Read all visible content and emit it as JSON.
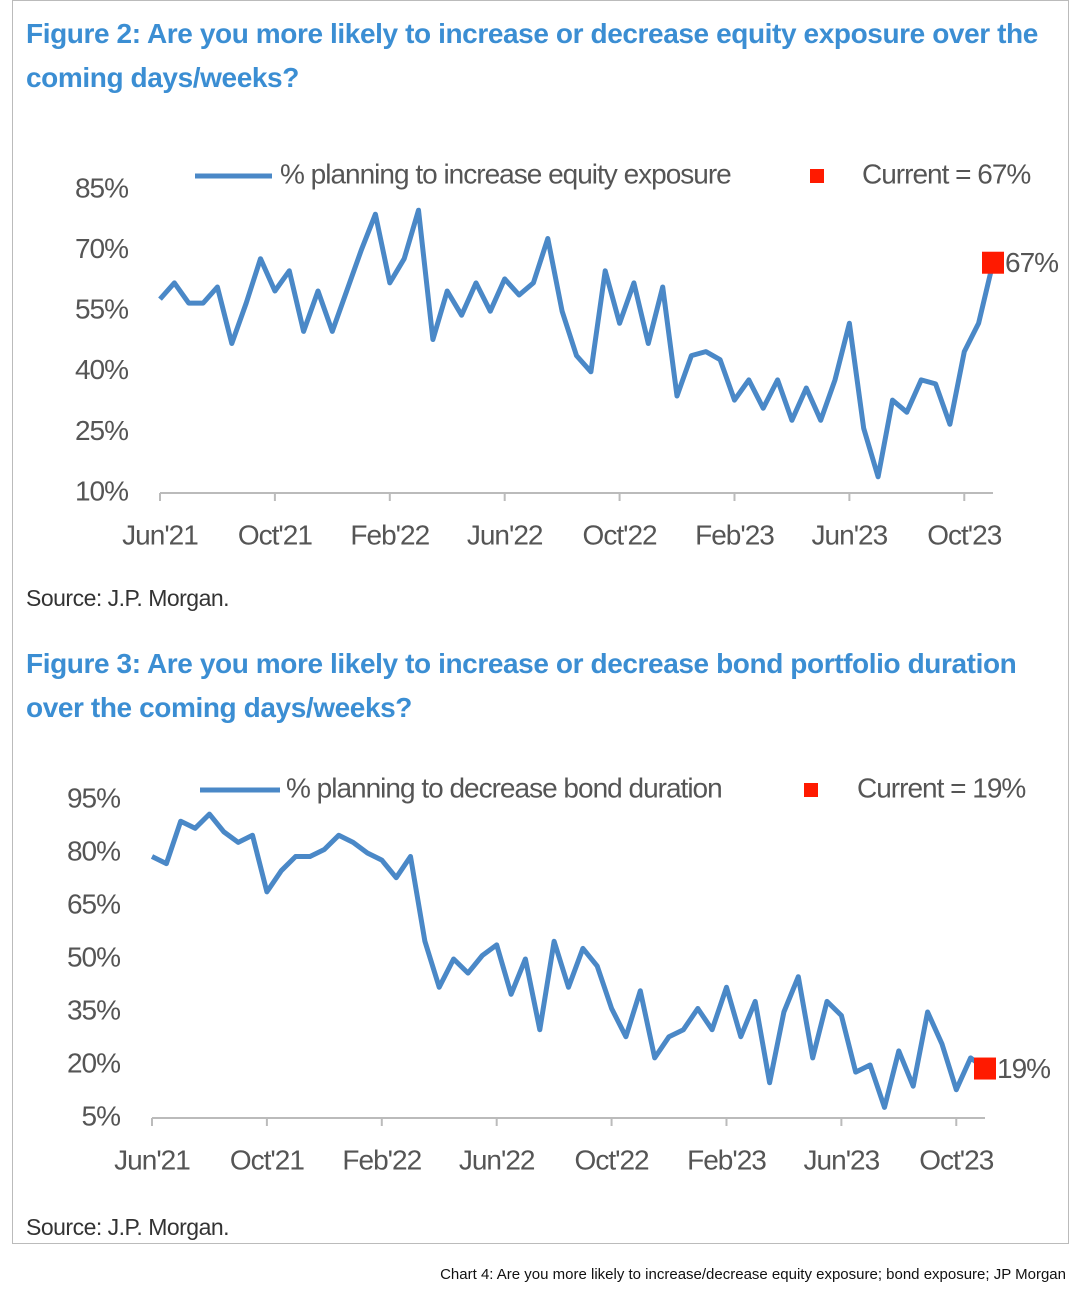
{
  "chart_data": [
    {
      "type": "line",
      "title": "Figure 2: Are you more likely to increase or decrease equity exposure over the coming days/weeks?",
      "categories": [
        "Jun'21",
        null,
        null,
        null,
        null,
        null,
        null,
        null,
        "Oct'21",
        null,
        null,
        null,
        null,
        null,
        null,
        null,
        "Feb'22",
        null,
        null,
        null,
        null,
        null,
        null,
        null,
        "Jun'22",
        null,
        null,
        null,
        null,
        null,
        null,
        null,
        "Oct'22",
        null,
        null,
        null,
        null,
        null,
        null,
        null,
        "Feb'23",
        null,
        null,
        null,
        null,
        null,
        null,
        null,
        "Jun'23",
        null,
        null,
        null,
        null,
        null,
        null,
        null,
        "Oct'23",
        null,
        null
      ],
      "series": [
        {
          "name": "% planning to increase equity exposure",
          "color": "#4a88c7",
          "values": [
            58,
            62,
            57,
            57,
            61,
            47,
            57,
            68,
            60,
            65,
            50,
            60,
            50,
            60,
            70,
            79,
            62,
            68,
            80,
            48,
            60,
            54,
            62,
            55,
            63,
            59,
            62,
            73,
            55,
            44,
            40,
            65,
            52,
            62,
            47,
            61,
            34,
            44,
            45,
            43,
            33,
            38,
            31,
            38,
            28,
            36,
            28,
            38,
            52,
            26,
            14,
            33,
            30,
            38,
            37,
            27,
            45,
            52,
            67
          ]
        }
      ],
      "current": {
        "name": "Current = 67%",
        "value": 67,
        "value_label": "67%",
        "color": "#ff1a00"
      },
      "ylim": [
        10,
        85
      ],
      "yticks": [
        {
          "value": 10,
          "label": "10%"
        },
        {
          "value": 25,
          "label": "25%"
        },
        {
          "value": 40,
          "label": "40%"
        },
        {
          "value": 55,
          "label": "55%"
        },
        {
          "value": 70,
          "label": "70%"
        },
        {
          "value": 85,
          "label": "85%"
        }
      ],
      "source": "Source: J.P. Morgan."
    },
    {
      "type": "line",
      "title": "Figure 3: Are you more likely to increase or decrease bond portfolio duration over the coming days/weeks?",
      "categories": [
        "Jun'21",
        null,
        null,
        null,
        null,
        null,
        null,
        null,
        "Oct'21",
        null,
        null,
        null,
        null,
        null,
        null,
        null,
        "Feb'22",
        null,
        null,
        null,
        null,
        null,
        null,
        null,
        "Jun'22",
        null,
        null,
        null,
        null,
        null,
        null,
        null,
        "Oct'22",
        null,
        null,
        null,
        null,
        null,
        null,
        null,
        "Feb'23",
        null,
        null,
        null,
        null,
        null,
        null,
        null,
        "Jun'23",
        null,
        null,
        null,
        null,
        null,
        null,
        null,
        "Oct'23",
        null,
        null
      ],
      "series": [
        {
          "name": "% planning to decrease bond duration",
          "color": "#4a88c7",
          "values": [
            79,
            77,
            89,
            87,
            91,
            86,
            83,
            85,
            69,
            75,
            79,
            79,
            81,
            85,
            83,
            80,
            78,
            73,
            79,
            55,
            42,
            50,
            46,
            51,
            54,
            40,
            50,
            30,
            55,
            42,
            53,
            48,
            36,
            28,
            41,
            22,
            28,
            30,
            36,
            30,
            42,
            28,
            38,
            15,
            35,
            45,
            22,
            38,
            34,
            18,
            20,
            8,
            24,
            14,
            35,
            26,
            13,
            22,
            19
          ]
        }
      ],
      "current": {
        "name": "Current = 19%",
        "value": 19,
        "value_label": "19%",
        "color": "#ff1a00"
      },
      "ylim": [
        5,
        95
      ],
      "yticks": [
        {
          "value": 5,
          "label": "5%"
        },
        {
          "value": 20,
          "label": "20%"
        },
        {
          "value": 35,
          "label": "35%"
        },
        {
          "value": 50,
          "label": "50%"
        },
        {
          "value": 65,
          "label": "65%"
        },
        {
          "value": 80,
          "label": "80%"
        },
        {
          "value": 95,
          "label": "95%"
        }
      ],
      "source": "Source: J.P. Morgan."
    }
  ],
  "caption": "Chart 4: Are you more likely to increase/decrease equity exposure; bond exposure; JP Morgan"
}
